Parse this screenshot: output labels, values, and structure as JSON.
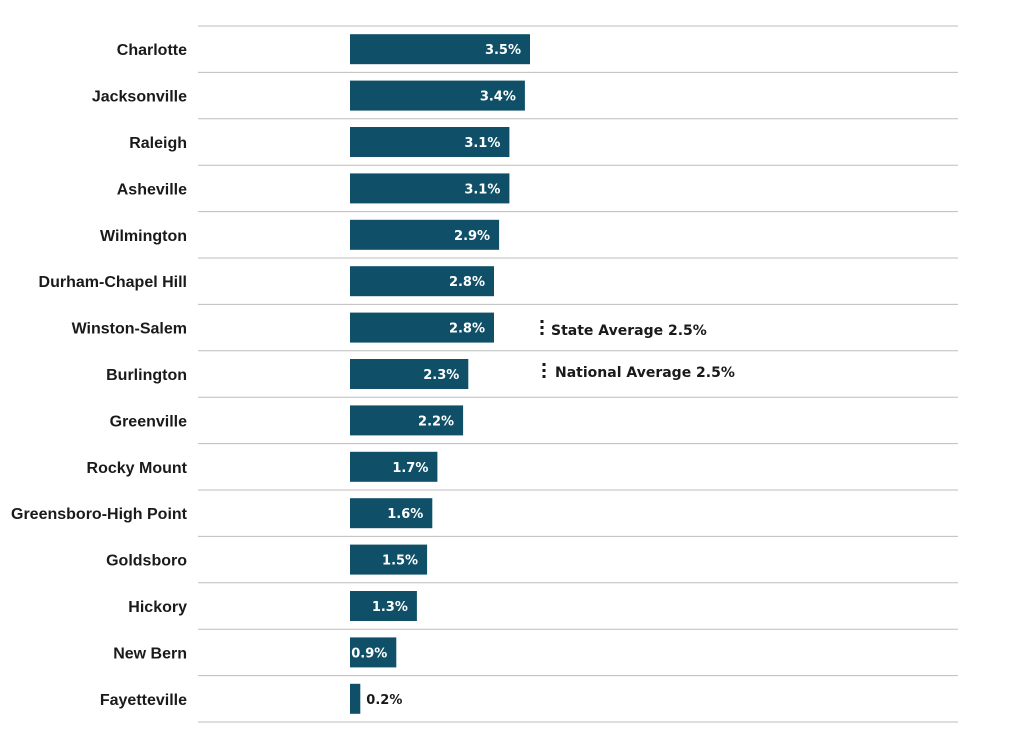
{
  "chart_data": {
    "type": "bar",
    "orientation": "horizontal",
    "categories": [
      "Charlotte",
      "Jacksonville",
      "Raleigh",
      "Asheville",
      "Wilmington",
      "Durham-Chapel Hill",
      "Winston-Salem",
      "Burlington",
      "Greenville",
      "Rocky Mount",
      "Greensboro-High Point",
      "Goldsboro",
      "Hickory",
      "New Bern",
      "Fayetteville"
    ],
    "values": [
      3.5,
      3.4,
      3.1,
      3.1,
      2.9,
      2.8,
      2.8,
      2.3,
      2.2,
      1.7,
      1.6,
      1.5,
      1.3,
      0.9,
      0.2
    ],
    "value_labels": [
      "3.5%",
      "3.4%",
      "3.1%",
      "3.1%",
      "2.9%",
      "2.8%",
      "2.8%",
      "2.3%",
      "2.2%",
      "1.7%",
      "1.6%",
      "1.5%",
      "1.3%",
      "0.9%",
      "0.2%"
    ],
    "xlim": [
      0,
      3.5
    ],
    "title": "",
    "xlabel": "",
    "ylabel": "",
    "grid": "horizontal separators",
    "bar_color": "#0f5068",
    "reference_lines": [
      {
        "label": "State Average 2.5%",
        "value": 2.5
      },
      {
        "label": "National Average 2.5%",
        "value": 2.5
      }
    ]
  }
}
